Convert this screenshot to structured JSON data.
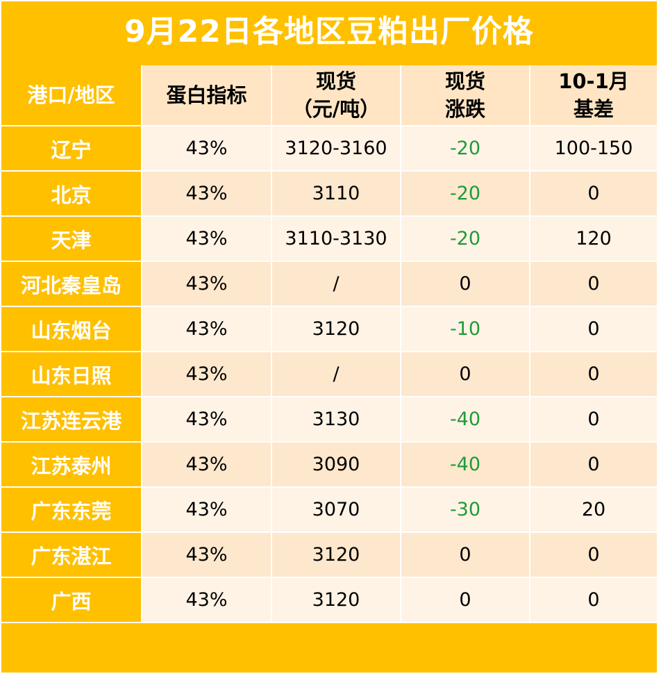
{
  "title": "9月22日各地区豆粕出厂价格",
  "colors": {
    "accent": "#ffc000",
    "header_cell": "#ffe5c4",
    "row_light": "#fff3e6",
    "row_dark": "#fde7cd",
    "decline": "#1e9b3a"
  },
  "chart_data": {
    "type": "table",
    "title": "9月22日各地区豆粕出厂价格",
    "columns": [
      {
        "line1": "港口/地区",
        "line2": ""
      },
      {
        "line1": "蛋白指标",
        "line2": ""
      },
      {
        "line1": "现货",
        "line2": "（元/吨）"
      },
      {
        "line1": "现货",
        "line2": "涨跌"
      },
      {
        "line1": "10-1月",
        "line2": "基差"
      }
    ],
    "rows": [
      {
        "region": "辽宁",
        "protein": "43%",
        "spot": "3120-3160",
        "change": "-20",
        "basis": "100-150"
      },
      {
        "region": "北京",
        "protein": "43%",
        "spot": "3110",
        "change": "-20",
        "basis": "0"
      },
      {
        "region": "天津",
        "protein": "43%",
        "spot": "3110-3130",
        "change": "-20",
        "basis": "120"
      },
      {
        "region": "河北秦皇岛",
        "protein": "43%",
        "spot": "/",
        "change": "0",
        "basis": "0"
      },
      {
        "region": "山东烟台",
        "protein": "43%",
        "spot": "3120",
        "change": "-10",
        "basis": "0"
      },
      {
        "region": "山东日照",
        "protein": "43%",
        "spot": "/",
        "change": "0",
        "basis": "0"
      },
      {
        "region": "江苏连云港",
        "protein": "43%",
        "spot": "3130",
        "change": "-40",
        "basis": "0"
      },
      {
        "region": "江苏泰州",
        "protein": "43%",
        "spot": "3090",
        "change": "-40",
        "basis": "0"
      },
      {
        "region": "广东东莞",
        "protein": "43%",
        "spot": "3070",
        "change": "-30",
        "basis": "20"
      },
      {
        "region": "广东湛江",
        "protein": "43%",
        "spot": "3120",
        "change": "0",
        "basis": "0"
      },
      {
        "region": "广西",
        "protein": "43%",
        "spot": "3120",
        "change": "0",
        "basis": "0"
      }
    ]
  }
}
